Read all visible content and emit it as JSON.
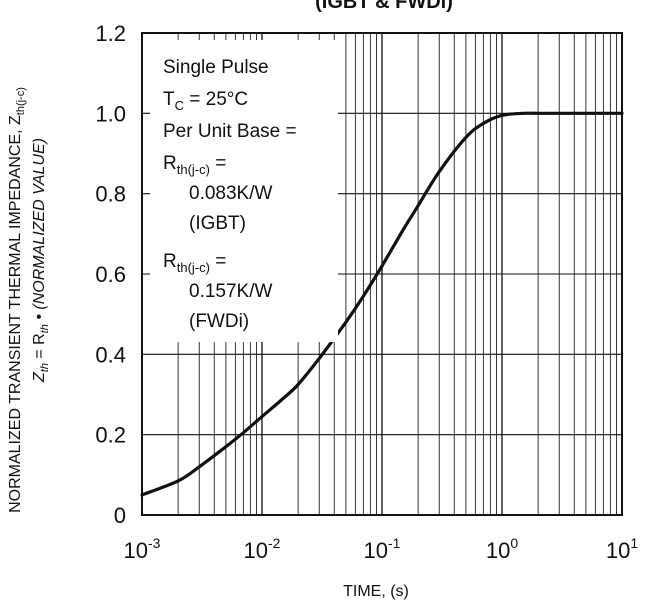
{
  "chart_data": {
    "type": "line",
    "title": "(IGBT & FWDi)",
    "xlabel": "TIME, (s)",
    "ylabel_line1": {
      "main": "NORMALIZED TRANSIENT THERMAL IMPEDANCE, Z",
      "sub": "th(j-c)"
    },
    "ylabel_line2": {
      "z": "Z",
      "z_sub": "th",
      "eq": " = R",
      "r_sub": "th",
      "rest": " • (NORMALIZED VALUE)"
    },
    "x_scale": "log",
    "xlim": [
      0.001,
      10
    ],
    "ylim": [
      0,
      1.2
    ],
    "grid": true,
    "x_ticks": [
      {
        "base": "10",
        "exp": "-3"
      },
      {
        "base": "10",
        "exp": "-2"
      },
      {
        "base": "10",
        "exp": "-1"
      },
      {
        "base": "10",
        "exp": "0"
      },
      {
        "base": "10",
        "exp": "1"
      }
    ],
    "y_ticks": [
      "0",
      "0.2",
      "0.4",
      "0.6",
      "0.8",
      "1.0",
      "1.2"
    ],
    "series": [
      {
        "x": [
          0.001,
          0.002,
          0.003,
          0.005,
          0.007,
          0.01,
          0.015,
          0.02,
          0.03,
          0.05,
          0.07,
          0.1,
          0.15,
          0.2,
          0.3,
          0.5,
          0.7,
          1.0,
          1.5,
          2.0,
          3.0,
          5.0,
          10.0
        ],
        "y": [
          0.05,
          0.085,
          0.12,
          0.17,
          0.205,
          0.245,
          0.29,
          0.325,
          0.39,
          0.48,
          0.545,
          0.62,
          0.71,
          0.77,
          0.855,
          0.94,
          0.975,
          0.995,
          1.0,
          1.0,
          1.0,
          1.0,
          1.0
        ]
      }
    ],
    "annotation": {
      "line1": "Single Pulse",
      "tc_main": "T",
      "tc_sub": "C",
      "tc_rest": " = 25°C",
      "line3": "Per Unit Base =",
      "r1_main": "R",
      "r1_sub": "th(j-c)",
      "r1_rest": " =",
      "r1_value": "0.083K/W",
      "r1_device": "(IGBT)",
      "r2_main": "R",
      "r2_sub": "th(j-c)",
      "r2_rest": " =",
      "r2_value": "0.157K/W",
      "r2_device": "(FWDi)"
    }
  }
}
